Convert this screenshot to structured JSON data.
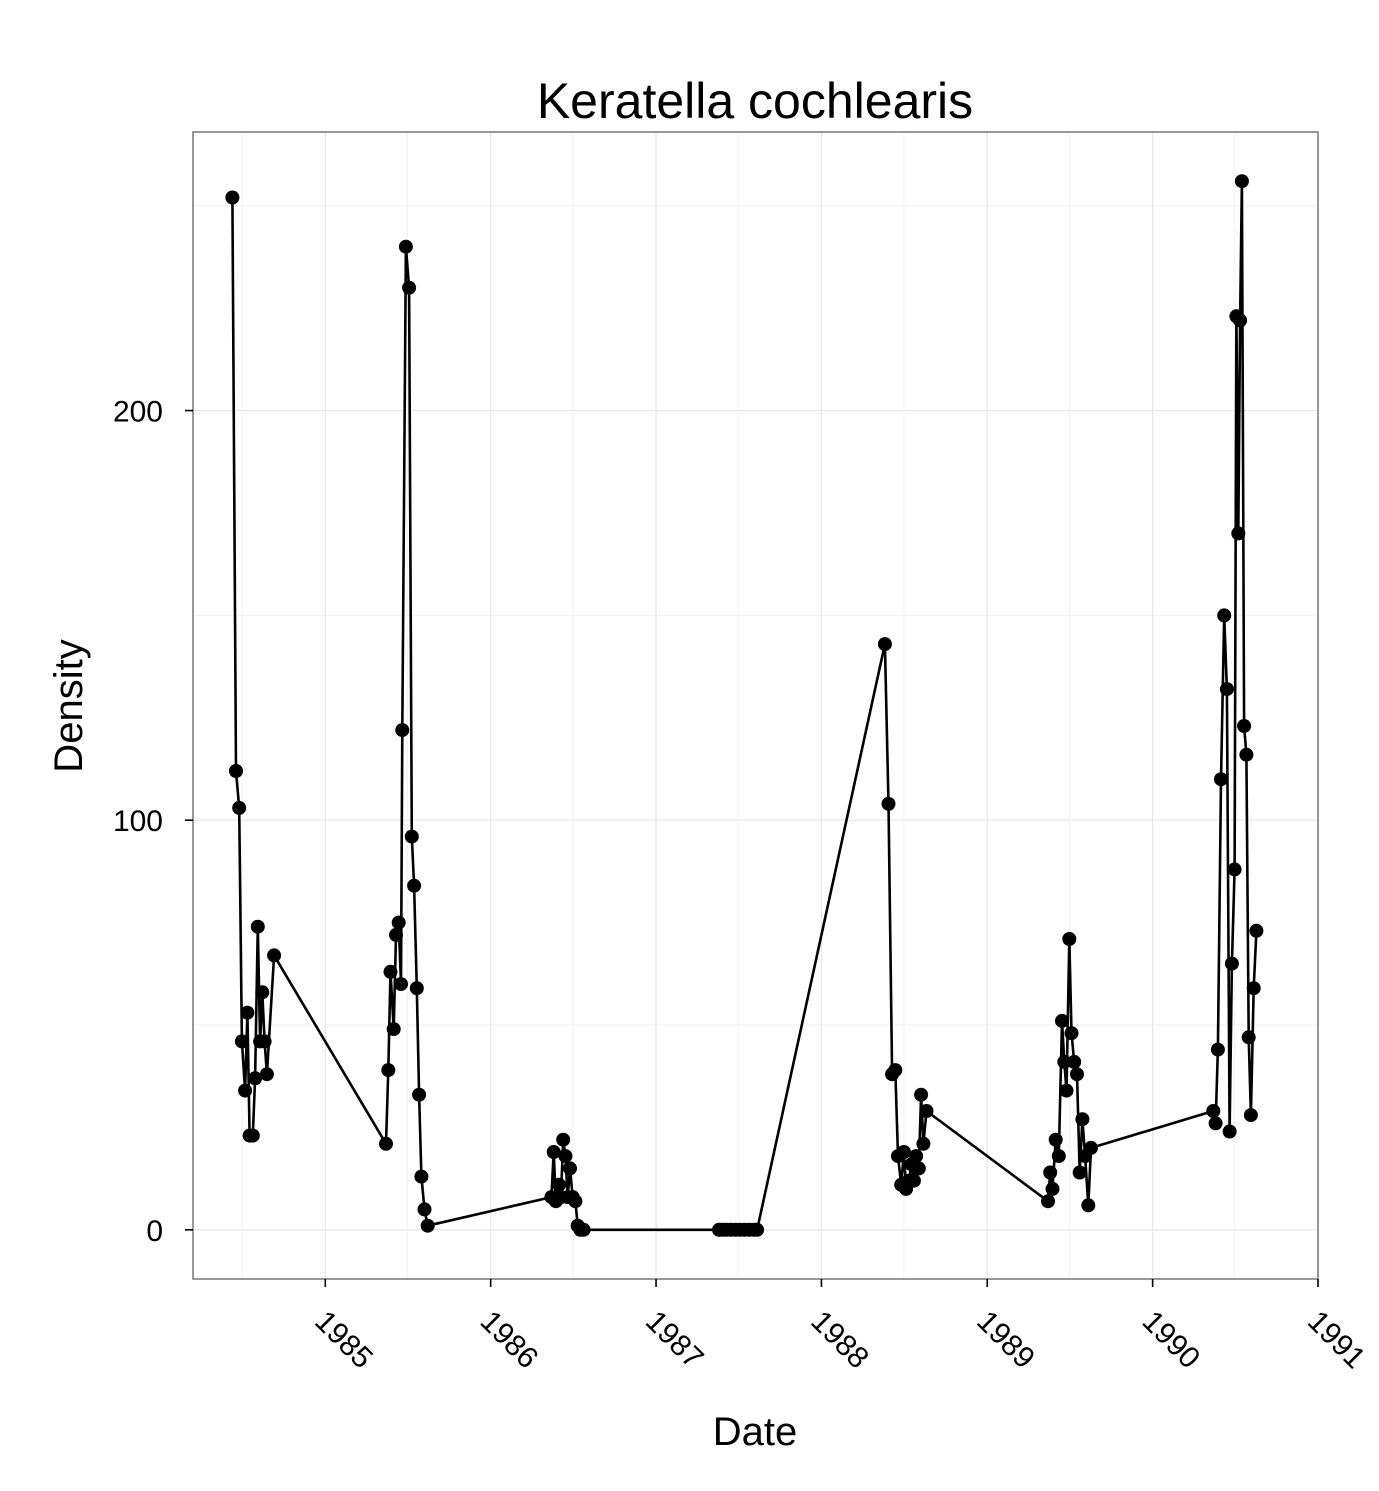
{
  "chart_data": {
    "type": "line",
    "title": "Keratella cochlearis",
    "xlabel": "Date",
    "ylabel": "Density",
    "x_ticks": [
      "1985",
      "1986",
      "1987",
      "1988",
      "1989",
      "1990",
      "1991"
    ],
    "y_ticks": [
      0,
      100,
      200
    ],
    "xlim": [
      "1984-03-15",
      "1991-01-01"
    ],
    "ylim": [
      -12,
      268
    ],
    "grid": true,
    "markers": true,
    "series": [
      {
        "points": [
          [
            "1984-06-10",
            252
          ],
          [
            "1984-06-18",
            112
          ],
          [
            "1984-06-25",
            103
          ],
          [
            "1984-07-01",
            46
          ],
          [
            "1984-07-08",
            34
          ],
          [
            "1984-07-13",
            53
          ],
          [
            "1984-07-18",
            23
          ],
          [
            "1984-07-25",
            23
          ],
          [
            "1984-07-30",
            37
          ],
          [
            "1984-08-05",
            74
          ],
          [
            "1984-08-10",
            46
          ],
          [
            "1984-08-15",
            58
          ],
          [
            "1984-08-20",
            46
          ],
          [
            "1984-08-25",
            38
          ],
          [
            "1984-09-10",
            67
          ],
          [
            "1985-05-15",
            21
          ],
          [
            "1985-05-20",
            39
          ],
          [
            "1985-05-25",
            63
          ],
          [
            "1985-06-01",
            49
          ],
          [
            "1985-06-06",
            72
          ],
          [
            "1985-06-12",
            75
          ],
          [
            "1985-06-17",
            60
          ],
          [
            "1985-06-20",
            122
          ],
          [
            "1985-06-28",
            240
          ],
          [
            "1985-07-05",
            230
          ],
          [
            "1985-07-11",
            96
          ],
          [
            "1985-07-16",
            84
          ],
          [
            "1985-07-22",
            59
          ],
          [
            "1985-07-27",
            33
          ],
          [
            "1985-08-01",
            13
          ],
          [
            "1985-08-08",
            5
          ],
          [
            "1985-08-15",
            1
          ],
          [
            "1986-05-15",
            8
          ],
          [
            "1986-05-20",
            19
          ],
          [
            "1986-05-25",
            7
          ],
          [
            "1986-06-01",
            11
          ],
          [
            "1986-06-05",
            8
          ],
          [
            "1986-06-10",
            22
          ],
          [
            "1986-06-15",
            18
          ],
          [
            "1986-06-20",
            8
          ],
          [
            "1986-06-25",
            15
          ],
          [
            "1986-07-01",
            8
          ],
          [
            "1986-07-07",
            7
          ],
          [
            "1986-07-12",
            1
          ],
          [
            "1986-07-18",
            0
          ],
          [
            "1986-07-25",
            0
          ],
          [
            "1987-05-20",
            0
          ],
          [
            "1987-05-28",
            0
          ],
          [
            "1987-06-05",
            0
          ],
          [
            "1987-06-15",
            0
          ],
          [
            "1987-06-25",
            0
          ],
          [
            "1987-07-05",
            0
          ],
          [
            "1987-07-15",
            0
          ],
          [
            "1987-07-25",
            0
          ],
          [
            "1987-08-05",
            0
          ],
          [
            "1987-08-12",
            0
          ],
          [
            "1988-05-20",
            143
          ],
          [
            "1988-05-28",
            104
          ],
          [
            "1988-06-05",
            38
          ],
          [
            "1988-06-12",
            39
          ],
          [
            "1988-06-18",
            18
          ],
          [
            "1988-06-25",
            11
          ],
          [
            "1988-07-01",
            19
          ],
          [
            "1988-07-06",
            10
          ],
          [
            "1988-07-12",
            12
          ],
          [
            "1988-07-18",
            16
          ],
          [
            "1988-07-23",
            12
          ],
          [
            "1988-07-28",
            18
          ],
          [
            "1988-08-03",
            15
          ],
          [
            "1988-08-08",
            33
          ],
          [
            "1988-08-13",
            21
          ],
          [
            "1988-08-20",
            29
          ],
          [
            "1989-05-15",
            7
          ],
          [
            "1989-05-20",
            14
          ],
          [
            "1989-05-25",
            10
          ],
          [
            "1989-06-01",
            22
          ],
          [
            "1989-06-08",
            18
          ],
          [
            "1989-06-15",
            51
          ],
          [
            "1989-06-20",
            41
          ],
          [
            "1989-06-25",
            34
          ],
          [
            "1989-07-01",
            71
          ],
          [
            "1989-07-06",
            48
          ],
          [
            "1989-07-12",
            41
          ],
          [
            "1989-07-18",
            38
          ],
          [
            "1989-07-24",
            14
          ],
          [
            "1989-07-30",
            27
          ],
          [
            "1989-08-05",
            18
          ],
          [
            "1989-08-12",
            6
          ],
          [
            "1989-08-18",
            20
          ],
          [
            "1990-05-15",
            29
          ],
          [
            "1990-05-20",
            26
          ],
          [
            "1990-05-25",
            44
          ],
          [
            "1990-06-01",
            110
          ],
          [
            "1990-06-08",
            150
          ],
          [
            "1990-06-14",
            132
          ],
          [
            "1990-06-20",
            24
          ],
          [
            "1990-06-25",
            65
          ],
          [
            "1990-07-01",
            88
          ],
          [
            "1990-07-05",
            223
          ],
          [
            "1990-07-09",
            170
          ],
          [
            "1990-07-13",
            222
          ],
          [
            "1990-07-17",
            256
          ],
          [
            "1990-07-22",
            123
          ],
          [
            "1990-07-27",
            116
          ],
          [
            "1990-08-01",
            47
          ],
          [
            "1990-08-06",
            28
          ],
          [
            "1990-08-12",
            59
          ],
          [
            "1990-08-18",
            73
          ]
        ]
      }
    ]
  }
}
